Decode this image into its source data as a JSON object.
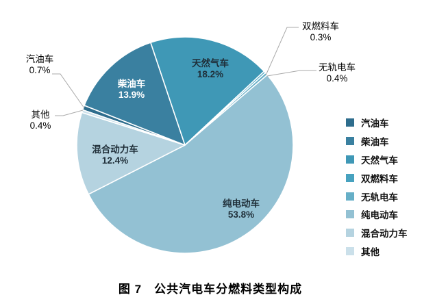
{
  "figure": {
    "caption": "图 7　公共汽电车分燃料类型构成"
  },
  "style_colors": {
    "label_dark": "#1F2E38",
    "label_light": "#FFFFFF",
    "leader_line": "#A9A9A9",
    "slice_border": "#FFFFFF"
  },
  "chart_data": {
    "type": "pie",
    "title": "图 7　公共汽电车分燃料类型构成",
    "unit": "%",
    "categories": [
      "汽油车",
      "柴油车",
      "天然气车",
      "双燃料车",
      "无轨电车",
      "纯电动车",
      "混合动力车",
      "其他"
    ],
    "values": [
      0.7,
      13.9,
      18.2,
      0.3,
      0.4,
      53.8,
      12.4,
      0.4
    ],
    "colors": [
      "#2E6D8D",
      "#3A80A0",
      "#3F98B6",
      "#47A2BF",
      "#66AFC7",
      "#93C1D3",
      "#B5D3E0",
      "#CBE0EA"
    ],
    "start_angle_deg": -71,
    "direction": "clockwise",
    "grid": false,
    "legend_position": "right",
    "legend_items": [
      "汽油车",
      "柴油车",
      "天然气车",
      "双燃料车",
      "无轨电车",
      "纯电动车",
      "混合动力车",
      "其他"
    ],
    "data_labels": [
      {
        "category": "汽油车",
        "text": "汽油车",
        "value_text": "0.7%",
        "placement": "outside"
      },
      {
        "category": "柴油车",
        "text": "柴油车",
        "value_text": "13.9%",
        "placement": "inside",
        "text_color": "light"
      },
      {
        "category": "天然气车",
        "text": "天然气车",
        "value_text": "18.2%",
        "placement": "inside",
        "text_color": "dark"
      },
      {
        "category": "双燃料车",
        "text": "双燃料车",
        "value_text": "0.3%",
        "placement": "outside"
      },
      {
        "category": "无轨电车",
        "text": "无轨电车",
        "value_text": "0.4%",
        "placement": "outside"
      },
      {
        "category": "纯电动车",
        "text": "纯电动车",
        "value_text": "53.8%",
        "placement": "inside",
        "text_color": "dark"
      },
      {
        "category": "混合动力车",
        "text": "混合动力车",
        "value_text": "12.4%",
        "placement": "inside",
        "text_color": "dark"
      },
      {
        "category": "其他",
        "text": "其他",
        "value_text": "0.4%",
        "placement": "outside"
      }
    ]
  }
}
